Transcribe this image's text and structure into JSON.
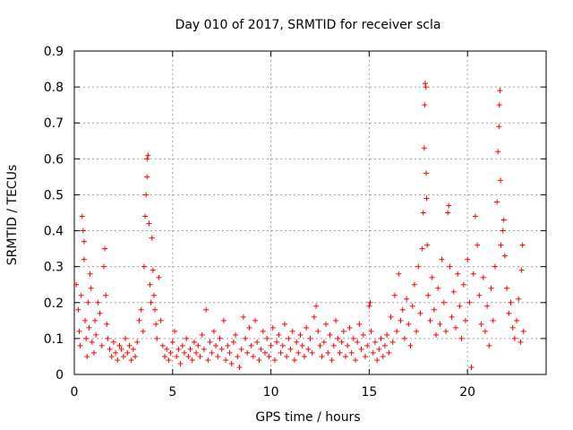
{
  "chart_data": {
    "type": "scatter",
    "title": "Day 010 of 2017, SRMTID for receiver scla",
    "xlabel": "GPS time / hours",
    "ylabel": "SRMTID / TECUs",
    "xlim": [
      0,
      24
    ],
    "ylim": [
      0,
      0.9
    ],
    "xticks": [
      0,
      5,
      10,
      15,
      20
    ],
    "yticks": [
      0,
      0.1,
      0.2,
      0.3,
      0.4,
      0.5,
      0.6,
      0.7,
      0.8,
      0.9
    ],
    "grid": true,
    "marker": "+",
    "color": "#ff0000",
    "series": [
      {
        "name": "scla",
        "points": [
          [
            0.1,
            0.25
          ],
          [
            0.2,
            0.18
          ],
          [
            0.25,
            0.12
          ],
          [
            0.3,
            0.08
          ],
          [
            0.35,
            0.22
          ],
          [
            0.4,
            0.44
          ],
          [
            0.45,
            0.4
          ],
          [
            0.5,
            0.37
          ],
          [
            0.5,
            0.32
          ],
          [
            0.55,
            0.15
          ],
          [
            0.6,
            0.1
          ],
          [
            0.65,
            0.05
          ],
          [
            0.7,
            0.2
          ],
          [
            0.75,
            0.13
          ],
          [
            0.8,
            0.28
          ],
          [
            0.85,
            0.24
          ],
          [
            0.9,
            0.09
          ],
          [
            1.0,
            0.06
          ],
          [
            1.05,
            0.15
          ],
          [
            1.1,
            0.11
          ],
          [
            1.2,
            0.2
          ],
          [
            1.3,
            0.17
          ],
          [
            1.4,
            0.08
          ],
          [
            1.5,
            0.3
          ],
          [
            1.55,
            0.35
          ],
          [
            1.6,
            0.22
          ],
          [
            1.65,
            0.14
          ],
          [
            1.7,
            0.1
          ],
          [
            1.8,
            0.07
          ],
          [
            1.9,
            0.05
          ],
          [
            2.0,
            0.09
          ],
          [
            2.1,
            0.06
          ],
          [
            2.2,
            0.04
          ],
          [
            2.3,
            0.08
          ],
          [
            2.4,
            0.07
          ],
          [
            2.5,
            0.05
          ],
          [
            2.6,
            0.1
          ],
          [
            2.7,
            0.06
          ],
          [
            2.8,
            0.08
          ],
          [
            2.9,
            0.04
          ],
          [
            3.0,
            0.07
          ],
          [
            3.1,
            0.05
          ],
          [
            3.2,
            0.09
          ],
          [
            3.3,
            0.15
          ],
          [
            3.4,
            0.18
          ],
          [
            3.5,
            0.12
          ],
          [
            3.55,
            0.3
          ],
          [
            3.6,
            0.44
          ],
          [
            3.65,
            0.5
          ],
          [
            3.7,
            0.55
          ],
          [
            3.7,
            0.6
          ],
          [
            3.75,
            0.61
          ],
          [
            3.8,
            0.42
          ],
          [
            3.85,
            0.25
          ],
          [
            3.9,
            0.2
          ],
          [
            3.95,
            0.38
          ],
          [
            4.0,
            0.29
          ],
          [
            4.05,
            0.22
          ],
          [
            4.1,
            0.18
          ],
          [
            4.15,
            0.14
          ],
          [
            4.2,
            0.1
          ],
          [
            4.3,
            0.27
          ],
          [
            4.4,
            0.15
          ],
          [
            4.5,
            0.08
          ],
          [
            4.6,
            0.05
          ],
          [
            4.7,
            0.07
          ],
          [
            4.8,
            0.04
          ],
          [
            4.9,
            0.06
          ],
          [
            5.0,
            0.09
          ],
          [
            5.1,
            0.12
          ],
          [
            5.2,
            0.05
          ],
          [
            5.3,
            0.07
          ],
          [
            5.4,
            0.03
          ],
          [
            5.5,
            0.08
          ],
          [
            5.6,
            0.06
          ],
          [
            5.7,
            0.1
          ],
          [
            5.8,
            0.05
          ],
          [
            5.9,
            0.07
          ],
          [
            6.0,
            0.04
          ],
          [
            6.1,
            0.09
          ],
          [
            6.2,
            0.06
          ],
          [
            6.3,
            0.08
          ],
          [
            6.4,
            0.05
          ],
          [
            6.5,
            0.11
          ],
          [
            6.6,
            0.07
          ],
          [
            6.7,
            0.18
          ],
          [
            6.8,
            0.04
          ],
          [
            6.9,
            0.09
          ],
          [
            7.0,
            0.06
          ],
          [
            7.1,
            0.12
          ],
          [
            7.2,
            0.08
          ],
          [
            7.3,
            0.05
          ],
          [
            7.4,
            0.1
          ],
          [
            7.5,
            0.07
          ],
          [
            7.6,
            0.15
          ],
          [
            7.7,
            0.04
          ],
          [
            7.8,
            0.08
          ],
          [
            7.9,
            0.06
          ],
          [
            8.0,
            0.03
          ],
          [
            8.1,
            0.09
          ],
          [
            8.2,
            0.11
          ],
          [
            8.3,
            0.05
          ],
          [
            8.4,
            0.02
          ],
          [
            8.5,
            0.07
          ],
          [
            8.6,
            0.16
          ],
          [
            8.7,
            0.1
          ],
          [
            8.8,
            0.06
          ],
          [
            8.9,
            0.13
          ],
          [
            9.0,
            0.08
          ],
          [
            9.1,
            0.05
          ],
          [
            9.2,
            0.15
          ],
          [
            9.3,
            0.09
          ],
          [
            9.4,
            0.04
          ],
          [
            9.5,
            0.07
          ],
          [
            9.6,
            0.12
          ],
          [
            9.7,
            0.06
          ],
          [
            9.8,
            0.1
          ],
          [
            9.9,
            0.05
          ],
          [
            10.0,
            0.08
          ],
          [
            10.1,
            0.13
          ],
          [
            10.2,
            0.04
          ],
          [
            10.3,
            0.09
          ],
          [
            10.4,
            0.11
          ],
          [
            10.5,
            0.06
          ],
          [
            10.6,
            0.08
          ],
          [
            10.7,
            0.14
          ],
          [
            10.8,
            0.05
          ],
          [
            10.9,
            0.1
          ],
          [
            11.0,
            0.07
          ],
          [
            11.1,
            0.12
          ],
          [
            11.2,
            0.04
          ],
          [
            11.3,
            0.09
          ],
          [
            11.4,
            0.06
          ],
          [
            11.5,
            0.11
          ],
          [
            11.6,
            0.08
          ],
          [
            11.7,
            0.05
          ],
          [
            11.8,
            0.13
          ],
          [
            11.9,
            0.07
          ],
          [
            12.0,
            0.1
          ],
          [
            12.1,
            0.06
          ],
          [
            12.2,
            0.16
          ],
          [
            12.3,
            0.19
          ],
          [
            12.4,
            0.12
          ],
          [
            12.5,
            0.08
          ],
          [
            12.6,
            0.05
          ],
          [
            12.7,
            0.09
          ],
          [
            12.8,
            0.14
          ],
          [
            12.9,
            0.06
          ],
          [
            13.0,
            0.11
          ],
          [
            13.1,
            0.04
          ],
          [
            13.2,
            0.08
          ],
          [
            13.3,
            0.15
          ],
          [
            13.4,
            0.1
          ],
          [
            13.5,
            0.06
          ],
          [
            13.6,
            0.09
          ],
          [
            13.7,
            0.12
          ],
          [
            13.8,
            0.05
          ],
          [
            13.9,
            0.08
          ],
          [
            14.0,
            0.13
          ],
          [
            14.1,
            0.06
          ],
          [
            14.2,
            0.1
          ],
          [
            14.3,
            0.04
          ],
          [
            14.4,
            0.09
          ],
          [
            14.5,
            0.14
          ],
          [
            14.6,
            0.07
          ],
          [
            14.7,
            0.11
          ],
          [
            14.8,
            0.05
          ],
          [
            14.9,
            0.08
          ],
          [
            15.0,
            0.19
          ],
          [
            15.05,
            0.2
          ],
          [
            15.1,
            0.12
          ],
          [
            15.2,
            0.06
          ],
          [
            15.3,
            0.09
          ],
          [
            15.4,
            0.04
          ],
          [
            15.5,
            0.07
          ],
          [
            15.6,
            0.1
          ],
          [
            15.7,
            0.05
          ],
          [
            15.8,
            0.08
          ],
          [
            15.9,
            0.11
          ],
          [
            16.0,
            0.06
          ],
          [
            16.1,
            0.16
          ],
          [
            16.2,
            0.09
          ],
          [
            16.3,
            0.22
          ],
          [
            16.4,
            0.12
          ],
          [
            16.5,
            0.28
          ],
          [
            16.6,
            0.15
          ],
          [
            16.7,
            0.18
          ],
          [
            16.8,
            0.1
          ],
          [
            16.9,
            0.21
          ],
          [
            17.0,
            0.14
          ],
          [
            17.1,
            0.08
          ],
          [
            17.2,
            0.19
          ],
          [
            17.3,
            0.25
          ],
          [
            17.4,
            0.12
          ],
          [
            17.5,
            0.3
          ],
          [
            17.6,
            0.17
          ],
          [
            17.7,
            0.35
          ],
          [
            17.75,
            0.45
          ],
          [
            17.8,
            0.63
          ],
          [
            17.82,
            0.75
          ],
          [
            17.85,
            0.81
          ],
          [
            17.88,
            0.8
          ],
          [
            17.9,
            0.56
          ],
          [
            17.92,
            0.49
          ],
          [
            17.95,
            0.36
          ],
          [
            18.0,
            0.22
          ],
          [
            18.1,
            0.15
          ],
          [
            18.2,
            0.27
          ],
          [
            18.3,
            0.18
          ],
          [
            18.4,
            0.11
          ],
          [
            18.5,
            0.24
          ],
          [
            18.6,
            0.14
          ],
          [
            18.7,
            0.32
          ],
          [
            18.8,
            0.2
          ],
          [
            18.9,
            0.12
          ],
          [
            19.0,
            0.45
          ],
          [
            19.05,
            0.47
          ],
          [
            19.1,
            0.3
          ],
          [
            19.2,
            0.16
          ],
          [
            19.3,
            0.23
          ],
          [
            19.4,
            0.13
          ],
          [
            19.5,
            0.28
          ],
          [
            19.6,
            0.19
          ],
          [
            19.7,
            0.1
          ],
          [
            19.8,
            0.25
          ],
          [
            19.9,
            0.15
          ],
          [
            20.0,
            0.32
          ],
          [
            20.1,
            0.2
          ],
          [
            20.2,
            0.02
          ],
          [
            20.3,
            0.28
          ],
          [
            20.4,
            0.44
          ],
          [
            20.5,
            0.36
          ],
          [
            20.6,
            0.22
          ],
          [
            20.7,
            0.14
          ],
          [
            20.8,
            0.27
          ],
          [
            20.9,
            0.12
          ],
          [
            21.0,
            0.19
          ],
          [
            21.1,
            0.08
          ],
          [
            21.2,
            0.24
          ],
          [
            21.3,
            0.15
          ],
          [
            21.4,
            0.3
          ],
          [
            21.5,
            0.48
          ],
          [
            21.55,
            0.62
          ],
          [
            21.6,
            0.69
          ],
          [
            21.62,
            0.75
          ],
          [
            21.65,
            0.79
          ],
          [
            21.68,
            0.54
          ],
          [
            21.7,
            0.36
          ],
          [
            21.8,
            0.4
          ],
          [
            21.85,
            0.43
          ],
          [
            21.9,
            0.33
          ],
          [
            22.0,
            0.24
          ],
          [
            22.1,
            0.17
          ],
          [
            22.2,
            0.2
          ],
          [
            22.3,
            0.13
          ],
          [
            22.4,
            0.1
          ],
          [
            22.5,
            0.15
          ],
          [
            22.6,
            0.21
          ],
          [
            22.7,
            0.09
          ],
          [
            22.75,
            0.29
          ],
          [
            22.8,
            0.36
          ],
          [
            22.85,
            0.12
          ]
        ]
      }
    ]
  }
}
